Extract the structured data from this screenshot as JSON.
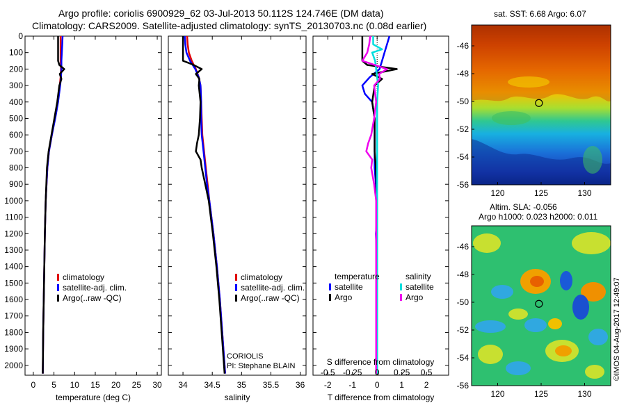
{
  "title_line1": "Argo profile: coriolis 6900929_62 03-Jul-2013 50.112S 124.746E (DM data)",
  "title_line2": "Climatology: CARS2009. Satellite-adjusted climatology: synTS_20130703.nc (0.08d earlier)",
  "watermark": "©IMOS 04-Aug-2017 12:49:07",
  "colors": {
    "climatology": "#e00000",
    "satellite_adj": "#0000ff",
    "argo": "#000000",
    "satellite_s": "#00dddd",
    "argo_s": "#ee00ee"
  },
  "chart_data": [
    {
      "type": "line",
      "name": "temperature-panel",
      "xlabel": "temperature (deg C)",
      "ylabel": "",
      "xlim": [
        -2,
        31
      ],
      "ylim": [
        2060,
        0
      ],
      "xticks": [
        0,
        5,
        10,
        15,
        20,
        25,
        30
      ],
      "yticks": [
        0,
        100,
        200,
        300,
        400,
        500,
        600,
        700,
        800,
        900,
        1000,
        1100,
        1200,
        1300,
        1400,
        1500,
        1600,
        1700,
        1800,
        1900,
        2000
      ],
      "legend": [
        "climatology",
        "satellite-adj. clim.",
        "Argo(..raw -QC)"
      ],
      "legend_position": "center-right",
      "series": [
        {
          "name": "climatology",
          "color": "#e00000",
          "depth": [
            0,
            50,
            100,
            150,
            200,
            250,
            300,
            400,
            500,
            600,
            700,
            800,
            1000,
            1200,
            1500,
            1800,
            2050
          ],
          "values": [
            6.6,
            6.6,
            6.6,
            6.6,
            6.7,
            6.6,
            6.4,
            5.9,
            5.2,
            4.5,
            3.8,
            3.4,
            3.0,
            2.8,
            2.6,
            2.4,
            2.3
          ]
        },
        {
          "name": "satellite-adj. clim.",
          "color": "#0000ff",
          "depth": [
            0,
            50,
            100,
            150,
            200,
            250,
            300,
            400,
            500,
            600,
            700,
            800,
            1000,
            1200,
            1500,
            1800,
            2050
          ],
          "values": [
            7.1,
            7.0,
            6.9,
            6.8,
            6.8,
            6.7,
            6.5,
            6.0,
            5.3,
            4.5,
            3.8,
            3.4,
            3.0,
            2.8,
            2.6,
            2.4,
            2.3
          ]
        },
        {
          "name": "Argo(..raw -QC)",
          "color": "#000000",
          "depth": [
            0,
            50,
            100,
            150,
            175,
            200,
            230,
            260,
            300,
            400,
            500,
            600,
            700,
            800,
            1000,
            1200,
            1500,
            1800,
            2050
          ],
          "values": [
            6.0,
            6.0,
            6.0,
            6.0,
            6.3,
            7.5,
            6.4,
            6.8,
            6.3,
            5.8,
            5.1,
            4.4,
            3.7,
            3.3,
            3.0,
            2.8,
            2.6,
            2.4,
            2.3
          ]
        }
      ]
    },
    {
      "type": "line",
      "name": "salinity-panel",
      "xlabel": "salinity",
      "ylabel": "",
      "xlim": [
        33.75,
        36.1
      ],
      "ylim": [
        2060,
        0
      ],
      "xticks": [
        34,
        34.5,
        35,
        35.5,
        36
      ],
      "legend": [
        "climatology",
        "satellite-adj. clim.",
        "Argo(..raw -QC)"
      ],
      "legend_position": "center-right",
      "annotation": [
        "CORIOLIS",
        "PI: Stephane BLAIN"
      ],
      "series": [
        {
          "name": "climatology",
          "color": "#e00000",
          "depth": [
            0,
            50,
            100,
            150,
            200,
            250,
            300,
            400,
            500,
            600,
            700,
            800,
            900,
            1000,
            1200,
            1400,
            1600,
            1800,
            2050
          ],
          "values": [
            34.07,
            34.08,
            34.1,
            34.15,
            34.22,
            34.27,
            34.3,
            34.31,
            34.32,
            34.33,
            34.36,
            34.39,
            34.42,
            34.45,
            34.52,
            34.58,
            34.63,
            34.67,
            34.72
          ]
        },
        {
          "name": "satellite-adj. clim.",
          "color": "#0000ff",
          "depth": [
            0,
            50,
            100,
            150,
            200,
            250,
            300,
            400,
            500,
            600,
            700,
            800,
            900,
            1000,
            1200,
            1400,
            1600,
            1800,
            2050
          ],
          "values": [
            34.03,
            34.04,
            34.06,
            34.12,
            34.21,
            34.27,
            34.3,
            34.31,
            34.31,
            34.32,
            34.35,
            34.38,
            34.41,
            34.45,
            34.52,
            34.58,
            34.63,
            34.67,
            34.72
          ]
        },
        {
          "name": "Argo(..raw -QC)",
          "color": "#000000",
          "depth": [
            0,
            50,
            100,
            150,
            170,
            200,
            230,
            260,
            300,
            400,
            500,
            600,
            650,
            700,
            750,
            800,
            900,
            1000,
            1200,
            1400,
            1600,
            1800,
            2050
          ],
          "values": [
            34.0,
            34.0,
            34.0,
            34.0,
            34.15,
            34.32,
            34.22,
            34.28,
            34.27,
            34.3,
            34.29,
            34.27,
            34.24,
            34.22,
            34.3,
            34.32,
            34.38,
            34.44,
            34.51,
            34.57,
            34.62,
            34.66,
            34.71
          ]
        }
      ]
    },
    {
      "type": "line",
      "name": "difference-panel",
      "xlabel": "T difference from climatology",
      "x2label": "S difference from climatology",
      "ylabel": "",
      "xlim": [
        -2.6,
        2.9
      ],
      "ylim": [
        2060,
        0
      ],
      "xticks": [
        -2,
        -1,
        0,
        1,
        2
      ],
      "x2ticks": [
        -0.5,
        -0.25,
        0,
        0.25,
        0.5
      ],
      "x2ticklabels": [
        "-0.5",
        "-0.25",
        "0",
        "0.25",
        "0.5"
      ],
      "legend_titles": [
        "temperature",
        "salinity"
      ],
      "legend": [
        "satellite",
        "Argo",
        "satellite",
        "Argo"
      ],
      "legend_position": "center",
      "series": [
        {
          "name": "satellite",
          "group": "temperature",
          "color": "#0000ff",
          "depth": [
            0,
            50,
            100,
            150,
            200,
            250,
            300,
            350,
            400,
            500,
            600,
            700,
            800,
            900,
            1000,
            1100,
            1200,
            1400,
            1600,
            1800,
            2050
          ],
          "values": [
            0.5,
            0.4,
            0.3,
            0.2,
            0.1,
            -0.3,
            -0.6,
            -0.5,
            -0.2,
            -0.1,
            -0.1,
            -0.1,
            -0.1,
            -0.05,
            0.0,
            0.0,
            -0.05,
            0.0,
            0.0,
            0.0,
            0.0
          ]
        },
        {
          "name": "Argo",
          "group": "temperature",
          "color": "#000000",
          "depth": [
            0,
            50,
            100,
            150,
            175,
            200,
            230,
            260,
            300,
            400,
            500,
            600,
            700,
            800,
            1000,
            1200,
            1500,
            1800,
            2050
          ],
          "values": [
            -0.6,
            -0.6,
            -0.6,
            -0.6,
            -0.4,
            0.8,
            -0.2,
            0.2,
            -0.1,
            -0.2,
            -0.1,
            -0.1,
            -0.1,
            -0.05,
            0.0,
            0.0,
            0.0,
            0.0,
            0.0
          ]
        },
        {
          "name": "satellite",
          "group": "salinity",
          "color": "#00dddd",
          "depth": [
            0,
            50,
            80,
            100,
            150,
            200,
            250,
            300,
            400,
            500,
            600,
            800,
            1000,
            1200,
            1500,
            1800,
            2050
          ],
          "values": [
            -0.04,
            -0.04,
            0.05,
            -0.05,
            -0.02,
            -0.01,
            0.0,
            0.01,
            0.0,
            0.0,
            0.0,
            0.0,
            0.0,
            0.0,
            0.0,
            0.0,
            0.0
          ]
        },
        {
          "name": "Argo",
          "group": "salinity",
          "color": "#ee00ee",
          "depth": [
            0,
            50,
            100,
            150,
            170,
            200,
            230,
            260,
            300,
            400,
            500,
            600,
            650,
            700,
            750,
            800,
            900,
            1000,
            1200,
            1500,
            1800,
            2050
          ],
          "values": [
            -0.07,
            -0.08,
            -0.1,
            -0.15,
            -0.05,
            0.1,
            0.02,
            0.03,
            -0.03,
            -0.01,
            -0.03,
            -0.06,
            -0.09,
            -0.11,
            -0.05,
            -0.06,
            -0.03,
            -0.01,
            -0.01,
            -0.01,
            -0.01,
            -0.01
          ]
        }
      ]
    },
    {
      "type": "heatmap",
      "name": "sst-map",
      "title": "sat. SST: 6.68 Argo: 6.07",
      "xlim": [
        117,
        133
      ],
      "ylim": [
        -56,
        -44.5
      ],
      "xticks": [
        120,
        125,
        130
      ],
      "yticks": [
        -46,
        -48,
        -50,
        -52,
        -54,
        -56
      ],
      "marker": {
        "lon": 124.746,
        "lat": -50.112
      }
    },
    {
      "type": "heatmap",
      "name": "sla-map",
      "title": "Altim. SLA: -0.056",
      "subtitle": "Argo h1000: 0.023 h2000: 0.011",
      "xlim": [
        117,
        133
      ],
      "ylim": [
        -56,
        -44.5
      ],
      "xticks": [
        120,
        125,
        130
      ],
      "yticks": [
        -46,
        -48,
        -50,
        -52,
        -54,
        -56
      ],
      "marker": {
        "lon": 124.746,
        "lat": -50.112
      }
    }
  ]
}
